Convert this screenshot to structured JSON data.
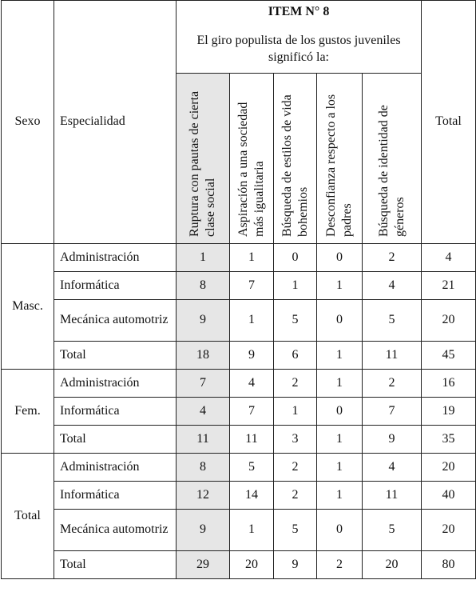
{
  "table": {
    "header": {
      "sex": "Sexo",
      "specialty": "Especialidad",
      "item": "ITEM N° 8",
      "question": "El giro populista de los gustos juveniles significó la:",
      "columns": [
        "Ruptura con pautas de cierta clase social",
        "Aspiración a una sociedad más igualitaria",
        "Búsqueda de estilos de vida bohemios",
        "Desconfianza respecto a los padres",
        "Búsqueda de identidad de géneros"
      ],
      "total": "Total"
    },
    "groups": [
      {
        "sex": "Masc.",
        "rows": [
          {
            "label": "Administración",
            "values": [
              1,
              1,
              0,
              0,
              2,
              4
            ]
          },
          {
            "label": "Informática",
            "values": [
              8,
              7,
              1,
              1,
              4,
              21
            ]
          },
          {
            "label": "Mecánica automotriz",
            "values": [
              9,
              1,
              5,
              0,
              5,
              20
            ]
          },
          {
            "label": "Total",
            "values": [
              18,
              9,
              6,
              1,
              11,
              45
            ]
          }
        ]
      },
      {
        "sex": "Fem.",
        "rows": [
          {
            "label": "Administración",
            "values": [
              7,
              4,
              2,
              1,
              2,
              16
            ]
          },
          {
            "label": "Informática",
            "values": [
              4,
              7,
              1,
              0,
              7,
              19
            ]
          },
          {
            "label": "Total",
            "values": [
              11,
              11,
              3,
              1,
              9,
              35
            ]
          }
        ]
      },
      {
        "sex": "Total",
        "rows": [
          {
            "label": "Administración",
            "values": [
              8,
              5,
              2,
              1,
              4,
              20
            ]
          },
          {
            "label": "Informática",
            "values": [
              12,
              14,
              2,
              1,
              11,
              40
            ]
          },
          {
            "label": "Mecánica automotriz",
            "values": [
              9,
              1,
              5,
              0,
              5,
              20
            ]
          },
          {
            "label": "Total",
            "values": [
              29,
              20,
              9,
              2,
              20,
              80
            ]
          }
        ]
      }
    ]
  }
}
